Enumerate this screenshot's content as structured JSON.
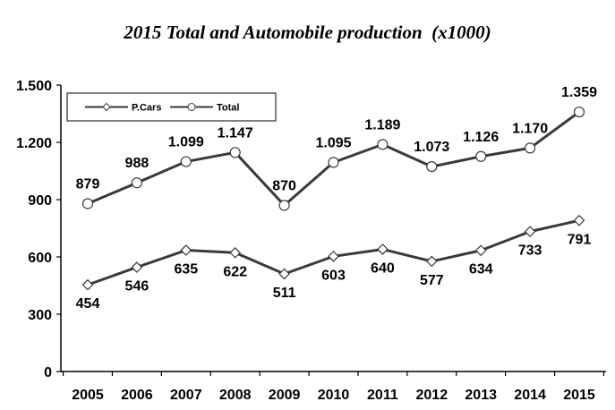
{
  "chart_data": {
    "type": "line",
    "title": "2015 Total and Automobile production  (x1000)",
    "xlabel": "",
    "ylabel": "",
    "categories": [
      "2005",
      "2006",
      "2007",
      "2008",
      "2009",
      "2010",
      "2011",
      "2012",
      "2013",
      "2014",
      "2015"
    ],
    "ylim": [
      0,
      1500
    ],
    "yticks": [
      0,
      300,
      600,
      900,
      1200,
      1500
    ],
    "ytick_labels": [
      "0",
      "300",
      "600",
      "900",
      "1.200",
      "1.500"
    ],
    "grid": false,
    "legend_position": "top-left",
    "series": [
      {
        "name": "P.Cars",
        "marker": "diamond",
        "color": "#3a3a3a",
        "values": [
          454,
          546,
          635,
          622,
          511,
          603,
          640,
          577,
          634,
          733,
          791
        ],
        "labels": [
          "454",
          "546",
          "635",
          "622",
          "511",
          "603",
          "640",
          "577",
          "634",
          "733",
          "791"
        ]
      },
      {
        "name": "Total",
        "marker": "circle",
        "color": "#3a3a3a",
        "values": [
          879,
          988,
          1099,
          1147,
          870,
          1095,
          1189,
          1073,
          1126,
          1170,
          1359
        ],
        "labels": [
          "879",
          "988",
          "1.099",
          "1.147",
          "870",
          "1.095",
          "1.189",
          "1.073",
          "1.126",
          "1.170",
          "1.359"
        ]
      }
    ]
  }
}
